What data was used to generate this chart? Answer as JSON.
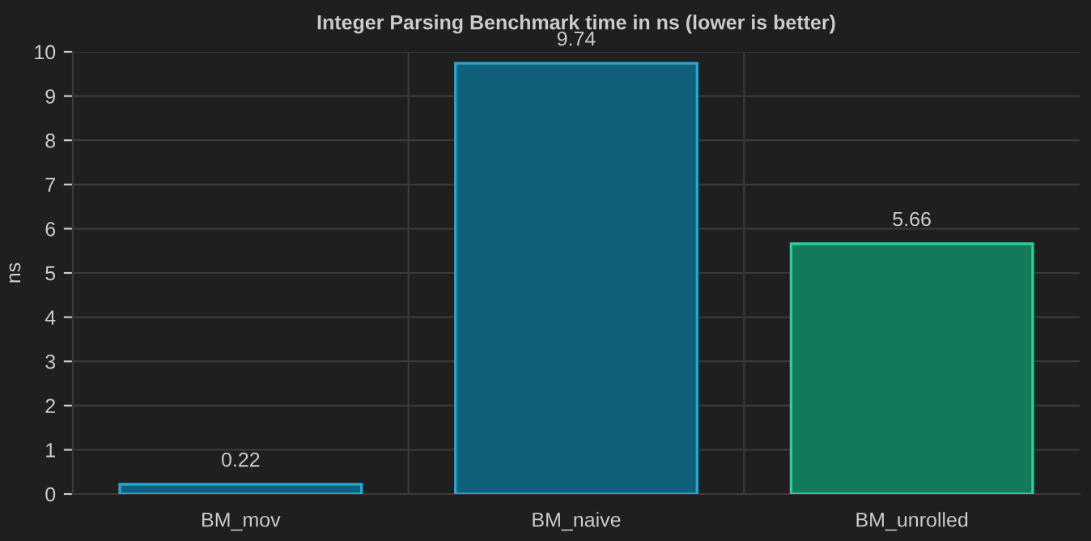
{
  "chart_data": {
    "type": "bar",
    "title": "Integer Parsing Benchmark time in ns (lower is better)",
    "ylabel": "ns",
    "categories": [
      "BM_mov",
      "BM_naive",
      "BM_unrolled"
    ],
    "values": [
      0.22,
      9.74,
      5.66
    ],
    "colors": [
      "#10607a",
      "#10607a",
      "#107a5a"
    ],
    "ylim": [
      0,
      10
    ],
    "yticks": [
      0,
      1,
      2,
      3,
      4,
      5,
      6,
      7,
      8,
      9,
      10
    ],
    "grid": true,
    "data_labels": true
  }
}
